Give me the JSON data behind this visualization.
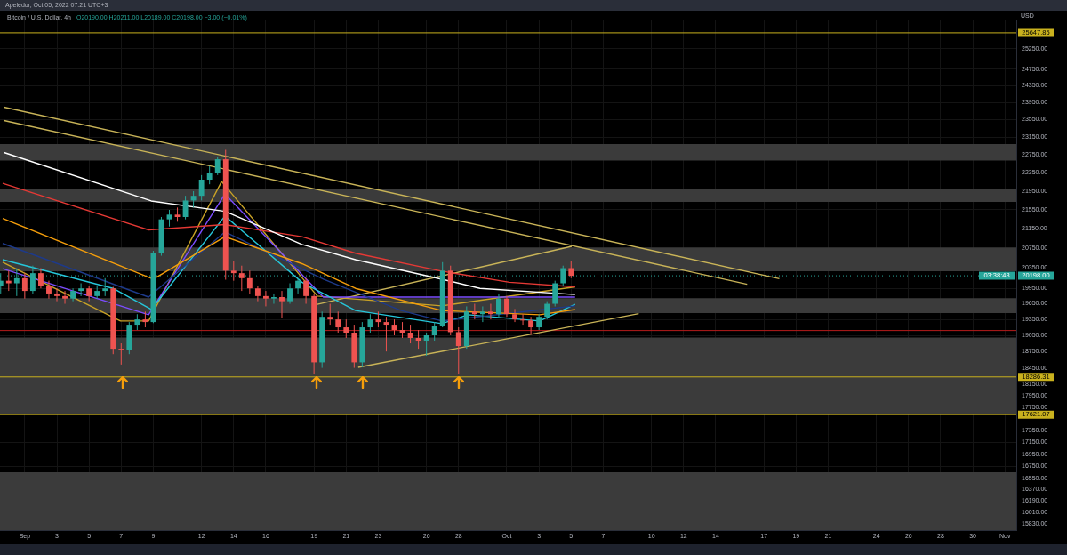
{
  "chart_data": {
    "type": "candlestick",
    "title": "Bitcoin / U.S. Dollar, 4h",
    "subtitle": "O20190.00 H20211.00 L20189.00 C20198.00 −3.00 (−0.01%)",
    "ylabel": "USD",
    "annotations": [
      "Apeledor, Oct 05, 2022 07:21 UTC+3",
      "03:38:43"
    ],
    "log": true,
    "grid": true,
    "legend": false,
    "xlim": [
      "2022-08-30T11:00",
      "2022-11-01T17:00"
    ],
    "xticks": [
      {
        "value": "2022-09-01",
        "label": "Sep"
      },
      {
        "value": "2022-09-03",
        "label": "3"
      },
      {
        "value": "2022-09-05",
        "label": "5"
      },
      {
        "value": "2022-09-07",
        "label": "7"
      },
      {
        "value": "2022-09-09",
        "label": "9"
      },
      {
        "value": "2022-09-12",
        "label": "12"
      },
      {
        "value": "2022-09-14",
        "label": "14"
      },
      {
        "value": "2022-09-16",
        "label": "16"
      },
      {
        "value": "2022-09-19",
        "label": "19"
      },
      {
        "value": "2022-09-21",
        "label": "21"
      },
      {
        "value": "2022-09-23",
        "label": "23"
      },
      {
        "value": "2022-09-26",
        "label": "26"
      },
      {
        "value": "2022-09-28",
        "label": "28"
      },
      {
        "value": "2022-10-01",
        "label": "Oct"
      },
      {
        "value": "2022-10-03",
        "label": "3"
      },
      {
        "value": "2022-10-05",
        "label": "5"
      },
      {
        "value": "2022-10-07",
        "label": "7"
      },
      {
        "value": "2022-10-10",
        "label": "10"
      },
      {
        "value": "2022-10-12",
        "label": "12"
      },
      {
        "value": "2022-10-14",
        "label": "14"
      },
      {
        "value": "2022-10-17",
        "label": "17"
      },
      {
        "value": "2022-10-19",
        "label": "19"
      },
      {
        "value": "2022-10-21",
        "label": "21"
      },
      {
        "value": "2022-10-24",
        "label": "24"
      },
      {
        "value": "2022-10-26",
        "label": "26"
      },
      {
        "value": "2022-10-28",
        "label": "28"
      },
      {
        "value": "2022-10-30",
        "label": "30"
      },
      {
        "value": "2022-11-01",
        "label": "Nov"
      }
    ],
    "ylim": [
      15730,
      25980
    ],
    "yticks": [
      {
        "value": 15830,
        "label": "15830.00"
      },
      {
        "value": 16010,
        "label": "16010.00"
      },
      {
        "value": 16190,
        "label": "16190.00"
      },
      {
        "value": 16370,
        "label": "16370.00"
      },
      {
        "value": 16550,
        "label": "16550.00"
      },
      {
        "value": 16750,
        "label": "16750.00"
      },
      {
        "value": 16950,
        "label": "16950.00"
      },
      {
        "value": 17150,
        "label": "17150.00"
      },
      {
        "value": 17350,
        "label": "17350.00"
      },
      {
        "value": 17750,
        "label": "17750.00"
      },
      {
        "value": 17950,
        "label": "17950.00"
      },
      {
        "value": 18150,
        "label": "18150.00"
      },
      {
        "value": 18450,
        "label": "18450.00"
      },
      {
        "value": 18750,
        "label": "18750.00"
      },
      {
        "value": 19050,
        "label": "19050.00"
      },
      {
        "value": 19350,
        "label": "19350.00"
      },
      {
        "value": 19650,
        "label": "19650.00"
      },
      {
        "value": 19950,
        "label": "19950.00"
      },
      {
        "value": 20350,
        "label": "20350.00"
      },
      {
        "value": 20750,
        "label": "20750.00"
      },
      {
        "value": 21150,
        "label": "21150.00"
      },
      {
        "value": 21550,
        "label": "21550.00"
      },
      {
        "value": 21950,
        "label": "21950.00"
      },
      {
        "value": 22350,
        "label": "22350.00"
      },
      {
        "value": 22750,
        "label": "22750.00"
      },
      {
        "value": 23150,
        "label": "23150.00"
      },
      {
        "value": 23550,
        "label": "23550.00"
      },
      {
        "value": 23950,
        "label": "23950.00"
      },
      {
        "value": 24350,
        "label": "24350.00"
      },
      {
        "value": 24750,
        "label": "24750.00"
      },
      {
        "value": 25250,
        "label": "25250.00"
      }
    ],
    "bands": [
      {
        "axis": "y",
        "from": 22620,
        "to": 22990,
        "color": "#3b3b3b"
      },
      {
        "axis": "y",
        "from": 21720,
        "to": 21990,
        "color": "#3b3b3b"
      },
      {
        "axis": "y",
        "from": 20290,
        "to": 20770,
        "color": "#3b3b3b"
      },
      {
        "axis": "y",
        "from": 19470,
        "to": 19760,
        "color": "#3b3b3b"
      },
      {
        "axis": "y",
        "from": 17640,
        "to": 19010,
        "color": "#3b3b3b"
      },
      {
        "axis": "y",
        "from": 15730,
        "to": 16650,
        "color": "#3b3b3b"
      }
    ],
    "ref_lines": [
      {
        "axis": "y",
        "value": 25647.85,
        "label": "25647.85",
        "color": "#c9b11e"
      },
      {
        "axis": "y",
        "value": 18286.31,
        "label": "18286.31",
        "color": "#c9b11e"
      },
      {
        "axis": "y",
        "value": 17621.07,
        "label": "17621.07",
        "color": "#c9b11e"
      },
      {
        "axis": "y",
        "value": 19140,
        "color": "#b71c1c"
      },
      {
        "axis": "y",
        "value": 20198,
        "label": "20198.00",
        "color": "#26a69a",
        "line_style": "dotted"
      }
    ],
    "x": [
      "2022-08-30T12:00",
      "2022-08-31T00:00",
      "2022-08-31T12:00",
      "2022-09-01T00:00",
      "2022-09-01T12:00",
      "2022-09-02T00:00",
      "2022-09-02T12:00",
      "2022-09-03T00:00",
      "2022-09-03T12:00",
      "2022-09-04T00:00",
      "2022-09-04T12:00",
      "2022-09-05T00:00",
      "2022-09-05T12:00",
      "2022-09-06T00:00",
      "2022-09-06T12:00",
      "2022-09-07T00:00",
      "2022-09-07T12:00",
      "2022-09-08T00:00",
      "2022-09-08T12:00",
      "2022-09-09T00:00",
      "2022-09-09T12:00",
      "2022-09-10T00:00",
      "2022-09-10T12:00",
      "2022-09-11T00:00",
      "2022-09-11T12:00",
      "2022-09-12T00:00",
      "2022-09-12T12:00",
      "2022-09-13T00:00",
      "2022-09-13T12:00",
      "2022-09-14T00:00",
      "2022-09-14T12:00",
      "2022-09-15T00:00",
      "2022-09-15T12:00",
      "2022-09-16T00:00",
      "2022-09-16T12:00",
      "2022-09-17T00:00",
      "2022-09-17T12:00",
      "2022-09-18T00:00",
      "2022-09-18T12:00",
      "2022-09-19T00:00",
      "2022-09-19T12:00",
      "2022-09-20T00:00",
      "2022-09-20T12:00",
      "2022-09-21T00:00",
      "2022-09-21T12:00",
      "2022-09-22T00:00",
      "2022-09-22T12:00",
      "2022-09-23T00:00",
      "2022-09-23T12:00",
      "2022-09-24T00:00",
      "2022-09-24T12:00",
      "2022-09-25T00:00",
      "2022-09-25T12:00",
      "2022-09-26T00:00",
      "2022-09-26T12:00",
      "2022-09-27T00:00",
      "2022-09-27T12:00",
      "2022-09-28T00:00",
      "2022-09-28T12:00",
      "2022-09-29T00:00",
      "2022-09-29T12:00",
      "2022-09-30T00:00",
      "2022-09-30T12:00",
      "2022-10-01T00:00",
      "2022-10-01T12:00",
      "2022-10-02T00:00",
      "2022-10-02T12:00",
      "2022-10-03T00:00",
      "2022-10-03T12:00",
      "2022-10-04T00:00",
      "2022-10-04T12:00",
      "2022-10-05T00:00"
    ],
    "ohlc": [
      [
        20000,
        20250,
        19850,
        20100
      ],
      [
        20100,
        20300,
        19900,
        20050
      ],
      [
        20050,
        20350,
        19800,
        20150
      ],
      [
        20150,
        20250,
        19750,
        19900
      ],
      [
        19900,
        20400,
        19850,
        20250
      ],
      [
        20250,
        20350,
        19950,
        20000
      ],
      [
        20000,
        20100,
        19750,
        19850
      ],
      [
        19850,
        19950,
        19700,
        19800
      ],
      [
        19800,
        19900,
        19650,
        19750
      ],
      [
        19750,
        19950,
        19700,
        19900
      ],
      [
        19900,
        20050,
        19800,
        19950
      ],
      [
        19950,
        20000,
        19700,
        19800
      ],
      [
        19800,
        20000,
        19750,
        19900
      ],
      [
        19900,
        20150,
        19800,
        19950
      ],
      [
        19950,
        19980,
        18700,
        18800
      ],
      [
        18800,
        18900,
        18510,
        18780
      ],
      [
        18780,
        19300,
        18700,
        19250
      ],
      [
        19250,
        19450,
        19150,
        19350
      ],
      [
        19350,
        19500,
        19200,
        19300
      ],
      [
        19300,
        20700,
        19280,
        20650
      ],
      [
        20650,
        21400,
        20600,
        21350
      ],
      [
        21350,
        21550,
        21200,
        21450
      ],
      [
        21450,
        21600,
        21300,
        21400
      ],
      [
        21400,
        21850,
        21350,
        21750
      ],
      [
        21750,
        21950,
        21600,
        21850
      ],
      [
        21850,
        22300,
        21750,
        22200
      ],
      [
        22200,
        22500,
        22100,
        22350
      ],
      [
        22350,
        22700,
        22300,
        22650
      ],
      [
        22650,
        22860,
        20120,
        20300
      ],
      [
        20300,
        20500,
        20100,
        20250
      ],
      [
        20250,
        20400,
        19900,
        20150
      ],
      [
        20150,
        20300,
        19840,
        19950
      ],
      [
        19950,
        20000,
        19700,
        19800
      ],
      [
        19800,
        19900,
        19600,
        19750
      ],
      [
        19750,
        19850,
        19650,
        19780
      ],
      [
        19780,
        19900,
        19370,
        19700
      ],
      [
        19700,
        20050,
        19650,
        19950
      ],
      [
        19950,
        20150,
        19850,
        20100
      ],
      [
        20100,
        20150,
        19650,
        19800
      ],
      [
        19800,
        19850,
        18330,
        18550
      ],
      [
        18550,
        19500,
        18450,
        19400
      ],
      [
        19400,
        19650,
        19250,
        19350
      ],
      [
        19350,
        19500,
        19100,
        19200
      ],
      [
        19200,
        19350,
        19000,
        19100
      ],
      [
        19100,
        19250,
        18450,
        18550
      ],
      [
        18550,
        19300,
        18460,
        19200
      ],
      [
        19200,
        19450,
        19100,
        19350
      ],
      [
        19350,
        19500,
        19200,
        19300
      ],
      [
        19300,
        19400,
        18750,
        19250
      ],
      [
        19250,
        19350,
        19050,
        19150
      ],
      [
        19150,
        19300,
        19000,
        19100
      ],
      [
        19100,
        19250,
        18900,
        19000
      ],
      [
        19000,
        19150,
        18800,
        18950
      ],
      [
        18950,
        19100,
        18670,
        19050
      ],
      [
        19050,
        19300,
        18950,
        19230
      ],
      [
        19230,
        20470,
        19200,
        20300
      ],
      [
        20300,
        20400,
        19050,
        19110
      ],
      [
        19110,
        19200,
        18330,
        18850
      ],
      [
        18850,
        19600,
        18800,
        19500
      ],
      [
        19500,
        19650,
        19350,
        19450
      ],
      [
        19450,
        19600,
        19300,
        19500
      ],
      [
        19500,
        19650,
        19350,
        19450
      ],
      [
        19450,
        19850,
        19400,
        19750
      ],
      [
        19750,
        19800,
        19400,
        19450
      ],
      [
        19450,
        19550,
        19300,
        19350
      ],
      [
        19350,
        19450,
        19250,
        19330
      ],
      [
        19330,
        19400,
        19060,
        19200
      ],
      [
        19200,
        19450,
        19150,
        19400
      ],
      [
        19400,
        19700,
        19350,
        19650
      ],
      [
        19650,
        20100,
        19600,
        20050
      ],
      [
        20050,
        20400,
        20000,
        20350
      ],
      [
        20350,
        20500,
        20150,
        20198
      ]
    ],
    "series": [
      {
        "type": "line",
        "color": "#ffffff",
        "x": [
          "2022-08-30T17:00",
          "2022-09-08T21:00",
          "2022-09-13T11:00",
          "2022-09-18T06:00",
          "2022-09-21T14:00",
          "2022-09-26T23:00",
          "2022-09-29T08:00",
          "2022-10-05T06:00"
        ],
        "values": [
          22800,
          21740,
          21520,
          20830,
          20520,
          20130,
          19950,
          19830
        ]
      },
      {
        "type": "line",
        "color": "#e53935",
        "x": [
          "2022-08-30T15:00",
          "2022-09-08T17:00",
          "2022-09-13T11:00",
          "2022-09-18T06:00",
          "2022-09-21T14:00",
          "2022-09-26T23:00",
          "2022-10-01T04:00",
          "2022-10-05T06:00"
        ],
        "values": [
          22120,
          21130,
          21240,
          20990,
          20650,
          20290,
          20070,
          19980
        ]
      },
      {
        "type": "line",
        "color": "#f59e0b",
        "x": [
          "2022-08-30T15:00",
          "2022-09-09T00:00",
          "2022-09-13T11:00",
          "2022-09-18T06:00",
          "2022-09-21T14:00",
          "2022-09-26T23:00",
          "2022-10-03T01:00",
          "2022-10-05T06:00"
        ],
        "values": [
          21370,
          20130,
          20990,
          20440,
          19950,
          19520,
          19440,
          19540
        ]
      },
      {
        "type": "line",
        "color": "#1e3a8a",
        "x": [
          "2022-08-30T15:00",
          "2022-09-08T17:00",
          "2022-09-13T11:00",
          "2022-09-19T14:00",
          "2022-09-24T10:00",
          "2022-09-26T23:00",
          "2022-10-05T06:00"
        ],
        "values": [
          20850,
          19780,
          21090,
          20130,
          19520,
          19320,
          19610
        ]
      },
      {
        "type": "line",
        "color": "#26c6da",
        "x": [
          "2022-08-30T15:00",
          "2022-09-06T12:00",
          "2022-09-08T21:00",
          "2022-09-13T11:00",
          "2022-09-18T06:00",
          "2022-09-21T14:00",
          "2022-09-26T23:00",
          "2022-09-28T14:00",
          "2022-10-03T01:00",
          "2022-10-05T06:00"
        ],
        "values": [
          20520,
          19950,
          19540,
          21420,
          20070,
          19520,
          19270,
          19440,
          19320,
          19640
        ]
      },
      {
        "type": "line",
        "color": "#7c4dff",
        "x": [
          "2022-08-30T15:00",
          "2022-09-08T17:00",
          "2022-09-13T11:00",
          "2022-09-19T14:00",
          "2022-09-26T23:00",
          "2022-10-05T06:00"
        ],
        "values": [
          20340,
          19440,
          21890,
          19780,
          null,
          19780
        ]
      },
      {
        "type": "line",
        "color": "#c9a227",
        "x": [
          "2022-08-30T15:00",
          "2022-09-06T23:00",
          "2022-09-08T17:00",
          "2022-09-13T06:00",
          "2022-09-19T05:00",
          "2022-09-26T23:00",
          "2022-10-05T06:00"
        ],
        "values": [
          20470,
          19320,
          19320,
          22160,
          19800,
          19610,
          19980
        ]
      },
      {
        "type": "line",
        "color": "#c9b458",
        "x": [
          "2022-08-30T17:00",
          "2022-10-17T23:00"
        ],
        "values": [
          23840,
          20140
        ]
      },
      {
        "type": "line",
        "color": "#c9b458",
        "x": [
          "2022-08-30T17:00",
          "2022-10-15T23:00"
        ],
        "values": [
          23530,
          20030
        ]
      },
      {
        "type": "line",
        "color": "#c9b458",
        "x": [
          "2022-09-21T18:00",
          "2022-10-09T05:00"
        ],
        "values": [
          18460,
          19460
        ]
      },
      {
        "type": "line",
        "color": "#c9b458",
        "x": [
          "2022-09-19T05:00",
          "2022-10-05T01:00"
        ],
        "values": [
          19640,
          20790
        ]
      }
    ]
  }
}
